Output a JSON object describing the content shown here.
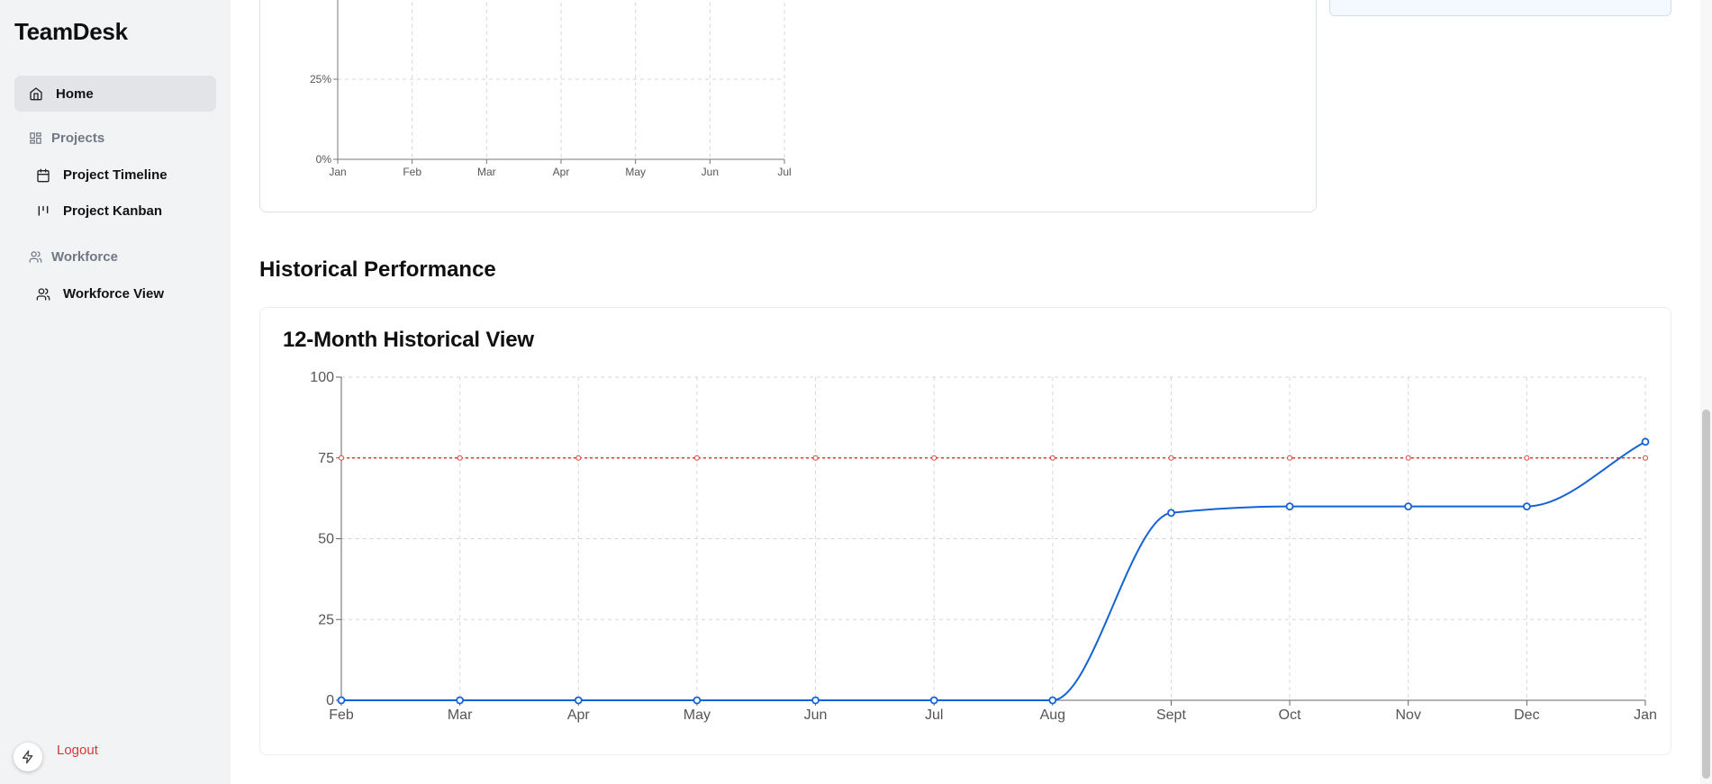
{
  "app": {
    "title": "TeamDesk"
  },
  "sidebar": {
    "home": {
      "label": "Home",
      "icon": "home-icon"
    },
    "sections": [
      {
        "label": "Projects",
        "icon": "grid-icon",
        "items": [
          {
            "label": "Project Timeline",
            "icon": "calendar-icon"
          },
          {
            "label": "Project Kanban",
            "icon": "kanban-icon"
          }
        ]
      },
      {
        "label": "Workforce",
        "icon": "users-icon",
        "items": [
          {
            "label": "Workforce View",
            "icon": "users-icon"
          }
        ]
      }
    ],
    "logout": "Logout"
  },
  "main": {
    "section_title": "Historical Performance",
    "hist_card_title": "12-Month Historical View"
  },
  "chart_data": [
    {
      "type": "line",
      "x": [
        "Jan",
        "Feb",
        "Mar",
        "Apr",
        "May",
        "Jun",
        "Jul"
      ],
      "y_ticks": [
        "0%",
        "25%"
      ],
      "ylim": [
        0,
        25
      ],
      "series": [],
      "grid": true
    },
    {
      "type": "line",
      "x": [
        "Feb",
        "Mar",
        "Apr",
        "May",
        "Jun",
        "Jul",
        "Aug",
        "Sept",
        "Oct",
        "Nov",
        "Dec",
        "Jan"
      ],
      "y_ticks": [
        "0",
        "25",
        "50",
        "75",
        "100"
      ],
      "ylim": [
        0,
        100
      ],
      "series": [
        {
          "values": [
            0,
            0,
            0,
            0,
            0,
            0,
            0,
            58,
            60,
            60,
            60,
            80
          ],
          "color": "#1463d6"
        },
        {
          "values": [
            75,
            75,
            75,
            75,
            75,
            75,
            75,
            75,
            75,
            75,
            75,
            75
          ],
          "color": "#e23b3b",
          "dashed": true
        }
      ],
      "grid": true
    }
  ]
}
